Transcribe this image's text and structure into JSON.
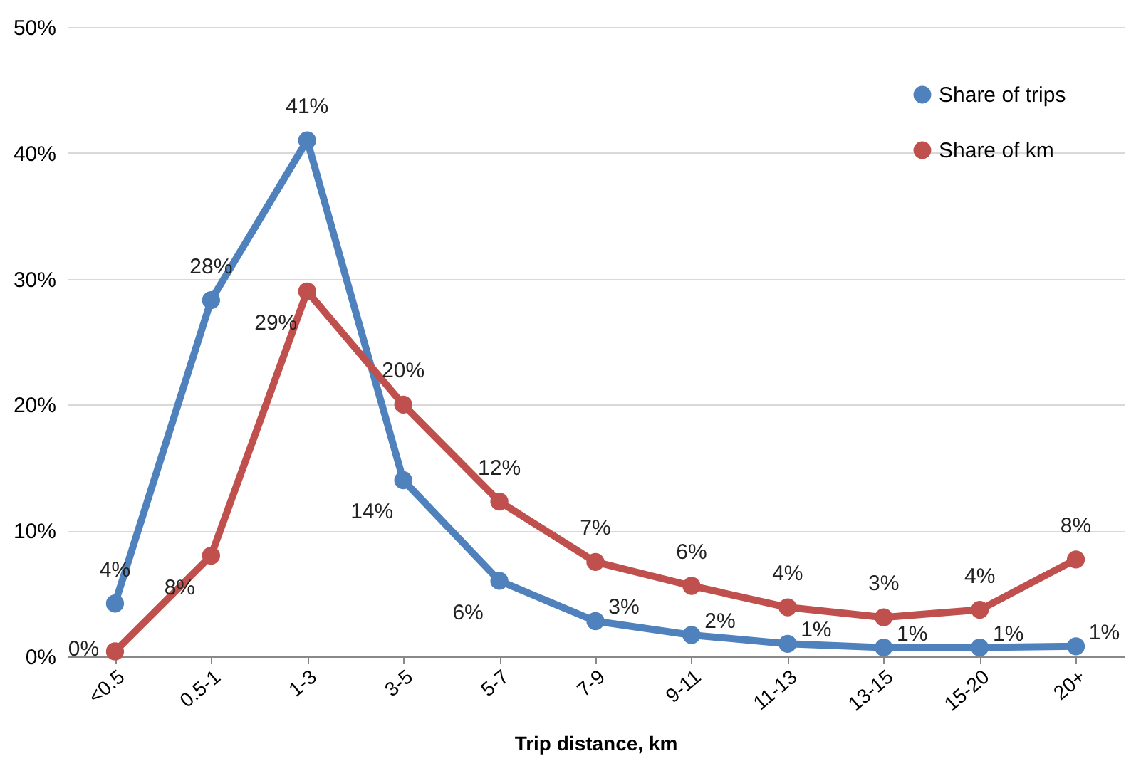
{
  "chart_data": {
    "type": "line",
    "xlabel": "Trip distance, km",
    "categories": [
      "<0.5",
      "0.5-1",
      "1-3",
      "3-5",
      "5-7",
      "7-9",
      "9-11",
      "11-13",
      "13-15",
      "15-20",
      "20+"
    ],
    "series": [
      {
        "name": "Share of trips",
        "color": "#4f81bd",
        "values": [
          4.2,
          28.3,
          41,
          14,
          6,
          2.8,
          1.7,
          1,
          0.7,
          0.7,
          0.8
        ],
        "value_labels": [
          "4%",
          "28%",
          "41%",
          "14%",
          "6%",
          "3%",
          "2%",
          "1%",
          "1%",
          "1%",
          "1%"
        ]
      },
      {
        "name": "Share of km",
        "color": "#c0504d",
        "values": [
          0.4,
          8,
          29,
          20,
          12.3,
          7.5,
          5.6,
          3.9,
          3.1,
          3.7,
          7.7
        ],
        "value_labels": [
          "0%",
          "8%",
          "29%",
          "20%",
          "12%",
          "7%",
          "6%",
          "4%",
          "3%",
          "4%",
          "8%"
        ]
      }
    ],
    "ylim": [
      0,
      50
    ],
    "yticks": [
      {
        "value": 0,
        "label": "0%"
      },
      {
        "value": 10,
        "label": "10%"
      },
      {
        "value": 20,
        "label": "20%"
      },
      {
        "value": 30,
        "label": "30%"
      },
      {
        "value": 40,
        "label": "40%"
      },
      {
        "value": 50,
        "label": "50%"
      }
    ],
    "grid": "y",
    "legend": "top right",
    "marker": "circle",
    "line_style": "solid"
  }
}
